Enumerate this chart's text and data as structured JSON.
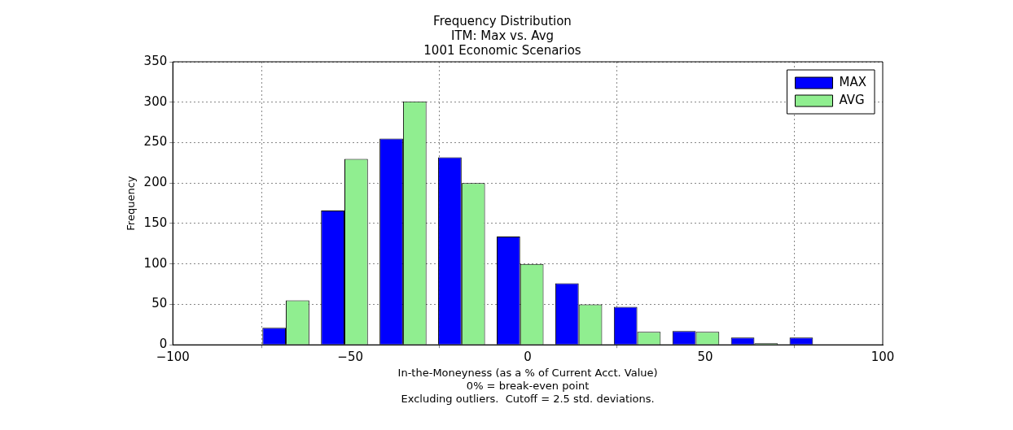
{
  "chart_data": {
    "type": "histogram",
    "title": "Frequency Distribution\nITM: Max vs. Avg\n1001 Economic Scenarios",
    "xlabel": "In-the-Moneyness (as a % of Current Acct. Value)",
    "ylabel": "Frequency",
    "annotations": [
      "0% = break-even point",
      "Excluding outliers.  Cutoff = 2.5 std. deviations."
    ],
    "bins": [
      -76.4,
      -59.9,
      -43.4,
      -26.9,
      -10.4,
      6.1,
      22.6,
      39.1,
      55.6,
      72.1,
      88.6
    ],
    "series": [
      {
        "name": "MAX",
        "color": "#0000ff",
        "values": [
          21,
          166,
          255,
          232,
          134,
          76,
          47,
          17,
          9,
          9
        ]
      },
      {
        "name": "AVG",
        "color": "#90ee90",
        "values": [
          55,
          230,
          301,
          200,
          100,
          50,
          16,
          16,
          2,
          0
        ]
      }
    ],
    "xlim": [
      -100,
      100
    ],
    "xticks": [
      -100,
      -50,
      0,
      50,
      100
    ],
    "ylim": [
      0,
      350
    ],
    "yticks": [
      0,
      50,
      100,
      150,
      200,
      250,
      300,
      350
    ],
    "grid": true,
    "legend": "top right"
  }
}
